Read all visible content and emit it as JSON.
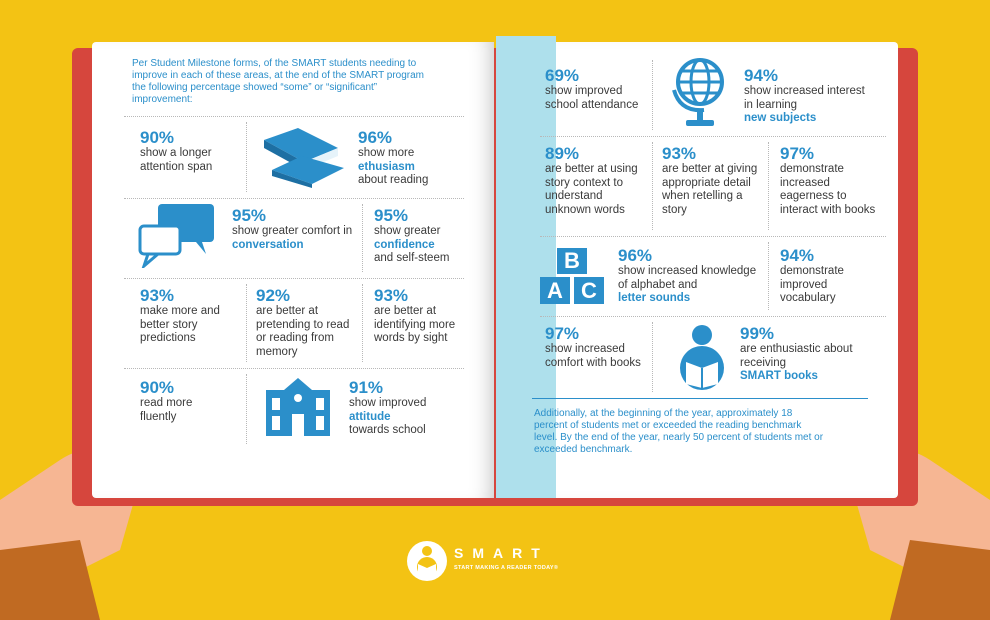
{
  "intro": "Per Student Milestone forms, of the SMART students needing to improve in each of these areas, at the end of the SMART program the following percentage showed “some” or “significant” improvement:",
  "stats_left": [
    {
      "id": "attention",
      "pct": "90%",
      "pre": "show a longer attention span",
      "hl": "",
      "post": ""
    },
    {
      "id": "ethusiasm",
      "pct": "96%",
      "pre": "show more",
      "hl": "ethusiasm",
      "post": "about reading"
    },
    {
      "id": "comfort-conversation",
      "pct": "95%",
      "pre": "show greater comfort in",
      "hl": "conversation",
      "post": ""
    },
    {
      "id": "confidence",
      "pct": "95%",
      "pre": "show greater",
      "hl": "confidence",
      "post": "and self-steem"
    },
    {
      "id": "predictions",
      "pct": "93%",
      "pre": "make more and better story predictions",
      "hl": "",
      "post": ""
    },
    {
      "id": "pretending",
      "pct": "92%",
      "pre": "are better at pretending to read or reading from memory",
      "hl": "",
      "post": ""
    },
    {
      "id": "sight-words",
      "pct": "93%",
      "pre": "are better at identifying more words by sight",
      "hl": "",
      "post": ""
    },
    {
      "id": "fluently",
      "pct": "90%",
      "pre": "read more fluently",
      "hl": "",
      "post": ""
    },
    {
      "id": "attitude",
      "pct": "91%",
      "pre": "show improved",
      "hl": "attitude",
      "post": "towards school"
    }
  ],
  "stats_right": [
    {
      "id": "attendance",
      "pct": "69%",
      "pre": "show improved school attendance",
      "hl": "",
      "post": ""
    },
    {
      "id": "new-subjects",
      "pct": "94%",
      "pre": "show increased interest in learning",
      "hl": "new subjects",
      "post": ""
    },
    {
      "id": "story-context",
      "pct": "89%",
      "pre": "are better at using story context to understand unknown words",
      "hl": "",
      "post": ""
    },
    {
      "id": "detail",
      "pct": "93%",
      "pre": "are better at giving appropriate detail when retelling a story",
      "hl": "",
      "post": ""
    },
    {
      "id": "eagerness",
      "pct": "97%",
      "pre": "demonstrate increased eagerness to interact with books",
      "hl": "",
      "post": ""
    },
    {
      "id": "letter-sounds",
      "pct": "96%",
      "pre": "show increased knowledge of alphabet and",
      "hl": "letter sounds",
      "post": ""
    },
    {
      "id": "vocabulary",
      "pct": "94%",
      "pre": "demonstrate improved vocabulary",
      "hl": "",
      "post": ""
    },
    {
      "id": "comfort-books",
      "pct": "97%",
      "pre": "show increased comfort with books",
      "hl": "",
      "post": ""
    },
    {
      "id": "smart-books",
      "pct": "99%",
      "pre": "are enthusiastic about receiving",
      "hl": "SMART books",
      "post": ""
    }
  ],
  "footnote": "Additionally, at the beginning of the year, approximately 18 percent of students met or exceeded the reading benchmark level. By the end of the year, nearly 50 percent of students met or exceeded benchmark.",
  "abc": [
    "B",
    "A",
    "C"
  ],
  "logo": {
    "name": "SMART",
    "tagline": "START MAKING A READER TODAY®"
  },
  "colors": {
    "background": "#f3c314",
    "cover": "#d6463d",
    "accent": "#2b8fca",
    "flap": "#aee0ec"
  }
}
